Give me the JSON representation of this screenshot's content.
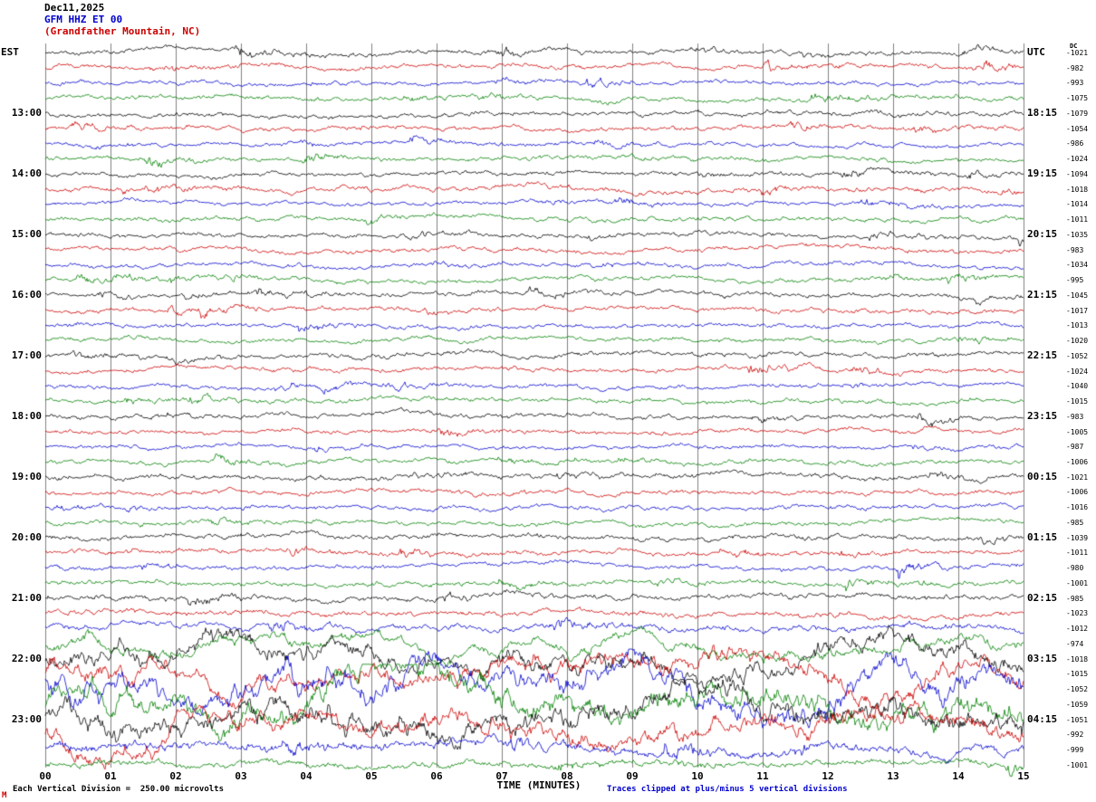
{
  "header": {
    "date": "Dec11,2025",
    "station": "GFM HHZ ET 00",
    "location": "(Grandfather Mountain, NC)"
  },
  "axes": {
    "dc_header": "DC",
    "x_label": "TIME (MINUTES)",
    "x_ticks": [
      "00",
      "01",
      "02",
      "03",
      "04",
      "05",
      "06",
      "07",
      "08",
      "09",
      "10",
      "11",
      "12",
      "13",
      "14",
      "15"
    ]
  },
  "footer": {
    "scale_note": "Each Vertical Division =  250.00 microvolts",
    "clip_note": "Traces clipped at plus/minus 5 vertical divisions",
    "corner_mark": "M"
  },
  "colors": {
    "black": "#000000",
    "red": "#cc0000",
    "blue": "#0000cc",
    "green": "#008000",
    "grid": "#808080"
  },
  "chart_data": {
    "type": "line",
    "subtype": "helicorder-seismogram",
    "x_range_minutes": [
      0,
      15
    ],
    "minutes_per_row": 15,
    "rows_per_hour": 4,
    "left_time_zone": "EST",
    "right_time_zone": "UTC",
    "traces": [
      {
        "est": "EST",
        "utc": "UTC",
        "dc": "-1021",
        "color": "black",
        "amp": 1.0
      },
      {
        "est": "",
        "utc": "",
        "dc": "-982",
        "color": "red",
        "amp": 1.0
      },
      {
        "est": "",
        "utc": "",
        "dc": "-993",
        "color": "blue",
        "amp": 0.9
      },
      {
        "est": "",
        "utc": "",
        "dc": "-1075",
        "color": "green",
        "amp": 1.0
      },
      {
        "est": "13:00",
        "utc": "18:15",
        "dc": "-1079",
        "color": "black",
        "amp": 1.0
      },
      {
        "est": "",
        "utc": "",
        "dc": "-1054",
        "color": "red",
        "amp": 1.0
      },
      {
        "est": "",
        "utc": "",
        "dc": "-986",
        "color": "blue",
        "amp": 0.9
      },
      {
        "est": "",
        "utc": "",
        "dc": "-1024",
        "color": "green",
        "amp": 1.0
      },
      {
        "est": "14:00",
        "utc": "19:15",
        "dc": "-1094",
        "color": "black",
        "amp": 1.0
      },
      {
        "est": "",
        "utc": "",
        "dc": "-1018",
        "color": "red",
        "amp": 1.1
      },
      {
        "est": "",
        "utc": "",
        "dc": "-1014",
        "color": "blue",
        "amp": 0.9
      },
      {
        "est": "",
        "utc": "",
        "dc": "-1011",
        "color": "green",
        "amp": 1.0
      },
      {
        "est": "15:00",
        "utc": "20:15",
        "dc": "-1035",
        "color": "black",
        "amp": 1.0
      },
      {
        "est": "",
        "utc": "",
        "dc": "-983",
        "color": "red",
        "amp": 1.0
      },
      {
        "est": "",
        "utc": "",
        "dc": "-1034",
        "color": "blue",
        "amp": 0.9
      },
      {
        "est": "",
        "utc": "",
        "dc": "-995",
        "color": "green",
        "amp": 1.0
      },
      {
        "est": "16:00",
        "utc": "21:15",
        "dc": "-1045",
        "color": "black",
        "amp": 1.0
      },
      {
        "est": "",
        "utc": "",
        "dc": "-1017",
        "color": "red",
        "amp": 1.0
      },
      {
        "est": "",
        "utc": "",
        "dc": "-1013",
        "color": "blue",
        "amp": 0.9
      },
      {
        "est": "",
        "utc": "",
        "dc": "-1020",
        "color": "green",
        "amp": 1.0
      },
      {
        "est": "17:00",
        "utc": "22:15",
        "dc": "-1052",
        "color": "black",
        "amp": 1.1
      },
      {
        "est": "",
        "utc": "",
        "dc": "-1024",
        "color": "red",
        "amp": 1.0
      },
      {
        "est": "",
        "utc": "",
        "dc": "-1040",
        "color": "blue",
        "amp": 0.9
      },
      {
        "est": "",
        "utc": "",
        "dc": "-1015",
        "color": "green",
        "amp": 1.0
      },
      {
        "est": "18:00",
        "utc": "23:15",
        "dc": "-983",
        "color": "black",
        "amp": 1.0
      },
      {
        "est": "",
        "utc": "",
        "dc": "-1005",
        "color": "red",
        "amp": 1.0
      },
      {
        "est": "",
        "utc": "",
        "dc": "-987",
        "color": "blue",
        "amp": 0.9
      },
      {
        "est": "",
        "utc": "",
        "dc": "-1006",
        "color": "green",
        "amp": 1.0
      },
      {
        "est": "19:00",
        "utc": "00:15",
        "dc": "-1021",
        "color": "black",
        "amp": 1.1
      },
      {
        "est": "",
        "utc": "",
        "dc": "-1006",
        "color": "red",
        "amp": 1.0
      },
      {
        "est": "",
        "utc": "",
        "dc": "-1016",
        "color": "blue",
        "amp": 1.0
      },
      {
        "est": "",
        "utc": "",
        "dc": "-985",
        "color": "green",
        "amp": 1.0
      },
      {
        "est": "20:00",
        "utc": "01:15",
        "dc": "-1039",
        "color": "black",
        "amp": 1.1
      },
      {
        "est": "",
        "utc": "",
        "dc": "-1011",
        "color": "red",
        "amp": 1.0
      },
      {
        "est": "",
        "utc": "",
        "dc": "-980",
        "color": "blue",
        "amp": 1.0
      },
      {
        "est": "",
        "utc": "",
        "dc": "-1001",
        "color": "green",
        "amp": 1.1
      },
      {
        "est": "21:00",
        "utc": "02:15",
        "dc": "-985",
        "color": "black",
        "amp": 1.2
      },
      {
        "est": "",
        "utc": "",
        "dc": "-1023",
        "color": "red",
        "amp": 1.2
      },
      {
        "est": "",
        "utc": "",
        "dc": "-1012",
        "color": "blue",
        "amp": 1.4
      },
      {
        "est": "",
        "utc": "",
        "dc": "-974",
        "color": "green",
        "amp": 2.2
      },
      {
        "est": "22:00",
        "utc": "03:15",
        "dc": "-1018",
        "color": "black",
        "amp": 3.6
      },
      {
        "est": "",
        "utc": "",
        "dc": "-1015",
        "color": "red",
        "amp": 3.6
      },
      {
        "est": "",
        "utc": "",
        "dc": "-1052",
        "color": "blue",
        "amp": 4.6
      },
      {
        "est": "",
        "utc": "",
        "dc": "-1059",
        "color": "green",
        "amp": 4.6
      },
      {
        "est": "23:00",
        "utc": "04:15",
        "dc": "-1051",
        "color": "black",
        "amp": 4.4
      },
      {
        "est": "",
        "utc": "",
        "dc": "-992",
        "color": "red",
        "amp": 3.6
      },
      {
        "est": "",
        "utc": "",
        "dc": "-999",
        "color": "blue",
        "amp": 2.0
      },
      {
        "est": "",
        "utc": "",
        "dc": "-1001",
        "color": "green",
        "amp": 1.4
      }
    ]
  }
}
